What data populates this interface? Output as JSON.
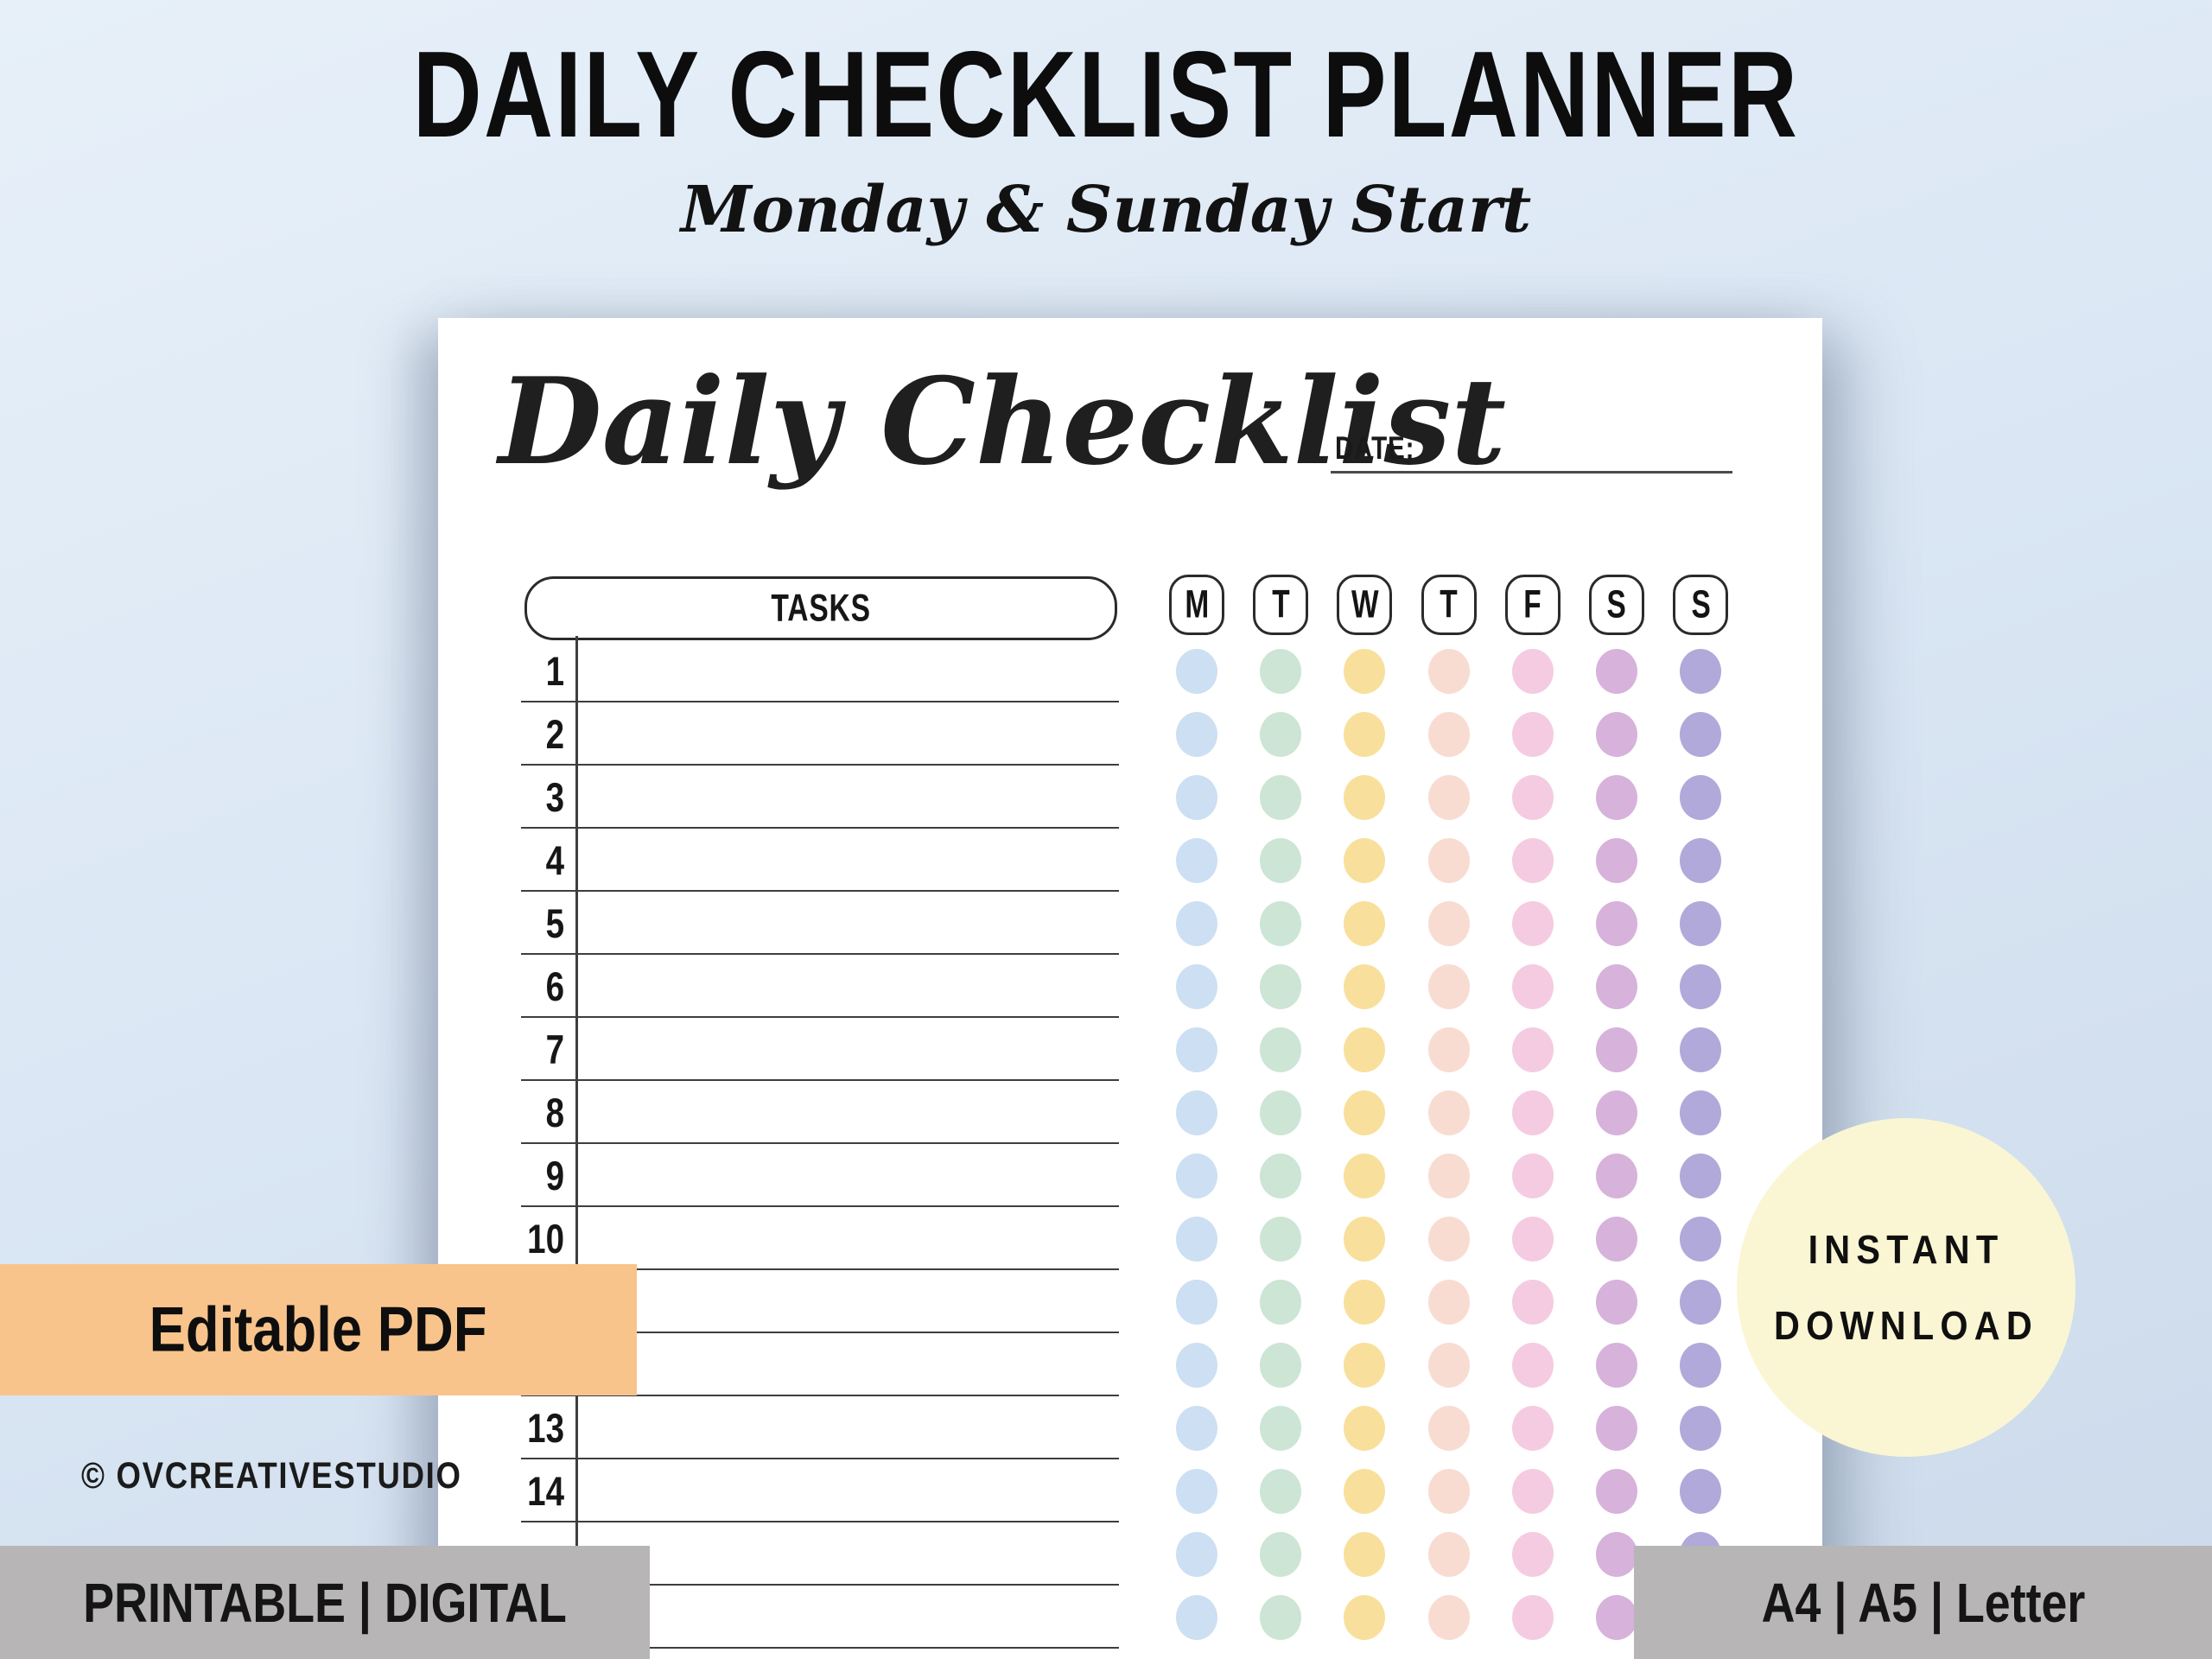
{
  "header": {
    "title": "DAILY CHECKLIST PLANNER",
    "subtitle": "Monday & Sunday Start"
  },
  "page": {
    "title": "Daily Checklist",
    "date_label": "DATE:",
    "tasks_header": "TASKS",
    "days": [
      {
        "label": "M",
        "dot_color": "#cddff2"
      },
      {
        "label": "T",
        "dot_color": "#cde5d4"
      },
      {
        "label": "W",
        "dot_color": "#f8e09c"
      },
      {
        "label": "T",
        "dot_color": "#f8dcd2"
      },
      {
        "label": "F",
        "dot_color": "#f5cbe2"
      },
      {
        "label": "S",
        "dot_color": "#d7b2db"
      },
      {
        "label": "S",
        "dot_color": "#b0a9d9"
      }
    ],
    "row_numbers": [
      "1",
      "2",
      "3",
      "4",
      "5",
      "6",
      "7",
      "8",
      "9",
      "10",
      null,
      null,
      "13",
      "14",
      null,
      null
    ]
  },
  "badges": {
    "editable_pdf": "Editable PDF",
    "copyright": "© OVCREATIVESTUDIO",
    "printable_digital": "PRINTABLE | DIGITAL",
    "instant_download_line1": "INSTANT",
    "instant_download_line2": "DOWNLOAD",
    "sizes": "A4 | A5 | Letter"
  },
  "colors": {
    "background": "#dbe7f4",
    "page": "#ffffff",
    "badge_orange": "#f8c48c",
    "circle_yellow": "#faf6d3",
    "bar_gray": "#b7b5b5",
    "line_dark": "#3e3e3e"
  }
}
